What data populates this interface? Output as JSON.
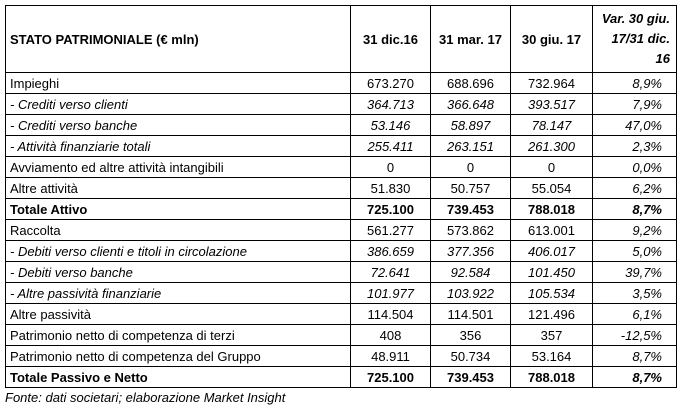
{
  "table": {
    "header": [
      "STATO PATRIMONIALE (€ mln)",
      "31 dic.16",
      "31 mar. 17",
      "30 giu. 17",
      "Var. 30 giu. 17/31 dic. 16"
    ],
    "rows": [
      [
        "Impieghi",
        "673.270",
        "688.696",
        "732.964",
        "8,9%"
      ],
      [
        "- Crediti verso clienti",
        "364.713",
        "366.648",
        "393.517",
        "7,9%"
      ],
      [
        "- Crediti verso banche",
        "53.146",
        "58.897",
        "78.147",
        "47,0%"
      ],
      [
        "- Attività finanziarie totali",
        "255.411",
        "263.151",
        "261.300",
        "2,3%"
      ],
      [
        "Avviamento ed altre attività intangibili",
        "0",
        "0",
        "0",
        "0,0%"
      ],
      [
        "Altre attività",
        "51.830",
        "50.757",
        "55.054",
        "6,2%"
      ],
      [
        "Totale Attivo",
        "725.100",
        "739.453",
        "788.018",
        "8,7%"
      ],
      [
        "Raccolta",
        "561.277",
        "573.862",
        "613.001",
        "9,2%"
      ],
      [
        "- Debiti verso clienti e titoli in circolazione",
        "386.659",
        "377.356",
        "406.017",
        "5,0%"
      ],
      [
        "- Debiti verso banche",
        "72.641",
        "92.584",
        "101.450",
        "39,7%"
      ],
      [
        "- Altre passività finanziarie",
        "101.977",
        "103.922",
        "105.534",
        "3,5%"
      ],
      [
        "Altre passività",
        "114.504",
        "114.501",
        "121.496",
        "6,1%"
      ],
      [
        "Patrimonio netto di competenza di terzi",
        "408",
        "356",
        "357",
        "-12,5%"
      ],
      [
        "Patrimonio netto di competenza del Gruppo",
        "48.911",
        "50.734",
        "53.164",
        "8,7%"
      ],
      [
        "Totale Passivo e Netto",
        "725.100",
        "739.453",
        "788.018",
        "8,7%"
      ]
    ]
  },
  "source": "Fonte: dati societari; elaborazione Market Insight"
}
